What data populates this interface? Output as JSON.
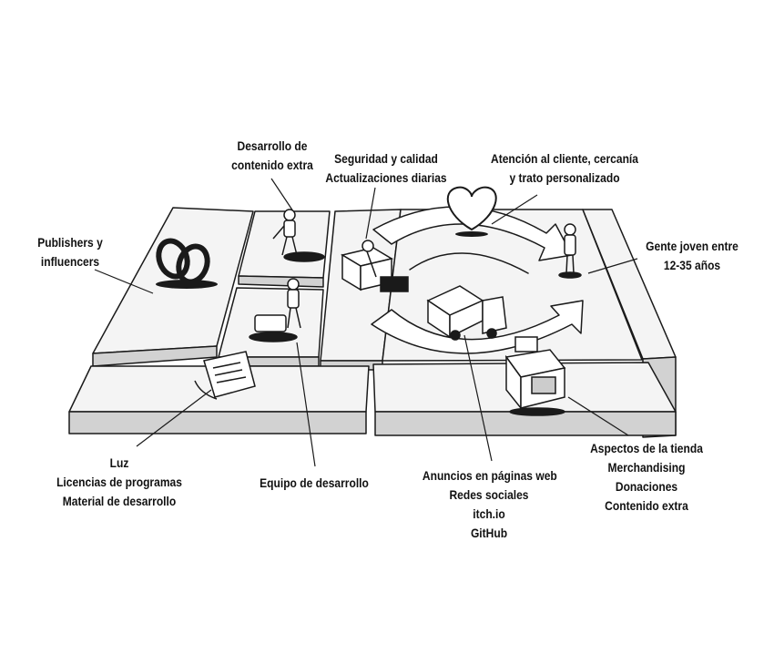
{
  "colors": {
    "ink": "#1a1a1a",
    "board_top": "#f4f4f4",
    "board_side": "#d2d2d2",
    "background": "#ffffff"
  },
  "icons": [
    "interlocked-rings-icon",
    "worker-figure-icon",
    "gift-box-icon",
    "heart-icon",
    "customer-figure-icon",
    "delivery-truck-icon",
    "document-icon",
    "cash-register-icon"
  ],
  "labels": {
    "key_activities": [
      "Desarrollo de",
      "contenido extra"
    ],
    "value_proposition": [
      "Seguridad y calidad",
      "Actualizaciones diarias"
    ],
    "customer_relationships": [
      "Atención al cliente, cercanía",
      "y trato personalizado"
    ],
    "key_partners": [
      "Publishers y",
      "influencers"
    ],
    "customer_segments": [
      "Gente joven entre",
      "12-35 años"
    ],
    "cost_structure": [
      "Luz",
      "Licencias de programas",
      "Material de desarrollo"
    ],
    "key_resources": [
      "Equipo de desarrollo"
    ],
    "channels": [
      "Anuncios en páginas web",
      "Redes sociales",
      "itch.io",
      "GitHub"
    ],
    "revenue_streams": [
      "Aspectos de la tienda",
      "Merchandising",
      "Donaciones",
      "Contenido extra"
    ]
  }
}
